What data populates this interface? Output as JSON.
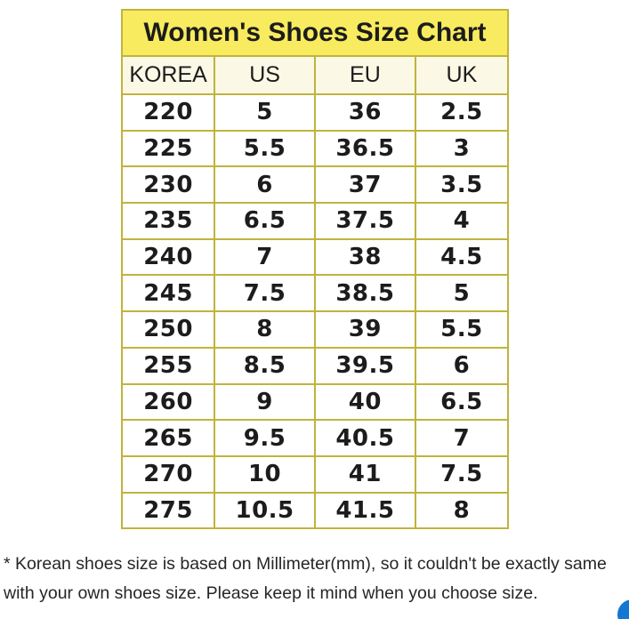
{
  "table": {
    "title": "Women's Shoes Size Chart",
    "columns": [
      "KOREA",
      "US",
      "EU",
      "UK"
    ],
    "rows": [
      [
        "220",
        "5",
        "36",
        "2.5"
      ],
      [
        "225",
        "5.5",
        "36.5",
        "3"
      ],
      [
        "230",
        "6",
        "37",
        "3.5"
      ],
      [
        "235",
        "6.5",
        "37.5",
        "4"
      ],
      [
        "240",
        "7",
        "38",
        "4.5"
      ],
      [
        "245",
        "7.5",
        "38.5",
        "5"
      ],
      [
        "250",
        "8",
        "39",
        "5.5"
      ],
      [
        "255",
        "8.5",
        "39.5",
        "6"
      ],
      [
        "260",
        "9",
        "40",
        "6.5"
      ],
      [
        "265",
        "9.5",
        "40.5",
        "7"
      ],
      [
        "270",
        "10",
        "41",
        "7.5"
      ],
      [
        "275",
        "10.5",
        "41.5",
        "8"
      ]
    ]
  },
  "footnote": {
    "line1": "* Korean shoes size is based on Millimeter(mm), so it couldn't be exactly same",
    "line2": "with your own shoes size. Please keep it mind when you choose size."
  },
  "colors": {
    "title_bg": "#f8eb5f",
    "header_bg": "#fbf8e6",
    "border": "#bfb43c",
    "accent_blue": "#1377d3"
  },
  "chart_data": {
    "type": "table",
    "title": "Women's Shoes Size Chart",
    "columns": [
      "KOREA",
      "US",
      "EU",
      "UK"
    ],
    "rows": [
      [
        220,
        5,
        36,
        2.5
      ],
      [
        225,
        5.5,
        36.5,
        3
      ],
      [
        230,
        6,
        37,
        3.5
      ],
      [
        235,
        6.5,
        37.5,
        4
      ],
      [
        240,
        7,
        38,
        4.5
      ],
      [
        245,
        7.5,
        38.5,
        5
      ],
      [
        250,
        8,
        39,
        5.5
      ],
      [
        255,
        8.5,
        39.5,
        6
      ],
      [
        260,
        9,
        40,
        6.5
      ],
      [
        265,
        9.5,
        40.5,
        7
      ],
      [
        270,
        10,
        41,
        7.5
      ],
      [
        275,
        10.5,
        41.5,
        8
      ]
    ],
    "notes": "* Korean shoes size is based on Millimeter(mm), so it couldn't be exactly same with your own shoes size. Please keep it mind when you choose size."
  }
}
